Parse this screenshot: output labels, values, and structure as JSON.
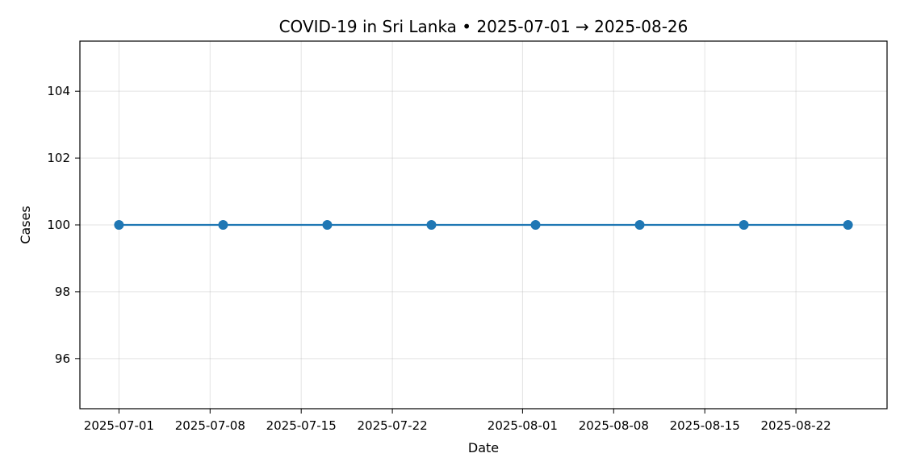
{
  "chart_data": {
    "type": "line",
    "title": "COVID-19 in Sri Lanka • 2025-07-01 → 2025-08-26",
    "xlabel": "Date",
    "ylabel": "Cases",
    "x": [
      "2025-07-01",
      "2025-07-09",
      "2025-07-17",
      "2025-07-25",
      "2025-08-02",
      "2025-08-10",
      "2025-08-18",
      "2025-08-26"
    ],
    "series": [
      {
        "values": [
          100,
          100,
          100,
          100,
          100,
          100,
          100,
          100
        ],
        "color": "#1f77b4"
      }
    ],
    "xticks": [
      "2025-07-01",
      "2025-07-08",
      "2025-07-15",
      "2025-07-22",
      "2025-08-01",
      "2025-08-08",
      "2025-08-15",
      "2025-08-22"
    ],
    "yticks": [
      96,
      98,
      100,
      102,
      104
    ],
    "ylim": [
      94.5,
      105.5
    ],
    "xlim": [
      "2025-06-28",
      "2025-08-29"
    ],
    "grid": true,
    "markers": true
  }
}
